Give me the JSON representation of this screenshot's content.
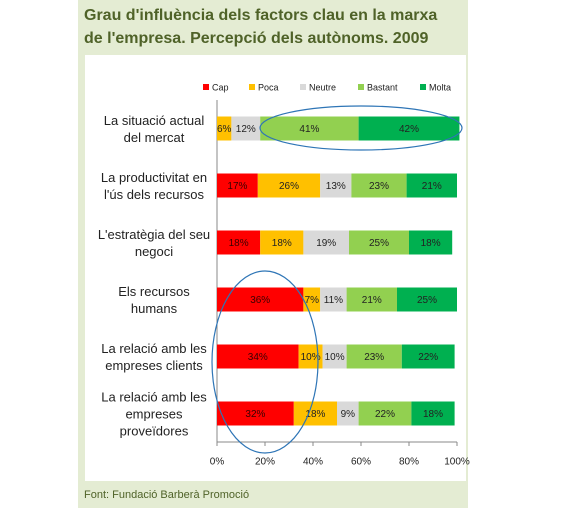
{
  "chart_data": {
    "type": "stacked-bar-horizontal",
    "title": "Grau d'influència dels factors clau en la marxa de l'empresa. Percepció dels autònoms. 2009",
    "source": "Font: Fundació Barberà Promoció",
    "categories": [
      "La situació actual del mercat",
      "La productivitat en l'ús dels recursos",
      "L'estratègia del seu negoci",
      "Els recursos humans",
      "La relació amb les empreses clients",
      "La relació amb les empreses proveïdores"
    ],
    "series": [
      {
        "name": "Cap",
        "color": "#ff0000",
        "values": [
          0,
          17,
          18,
          36,
          34,
          32
        ],
        "value_labels": [
          null,
          "17%",
          "18%",
          "36%",
          "34%",
          "32%"
        ]
      },
      {
        "name": "Poca",
        "color": "#ffc000",
        "values": [
          6,
          26,
          18,
          7,
          10,
          18
        ],
        "value_labels": [
          "6%",
          "26%",
          "18%",
          "7%",
          "10%",
          "18%"
        ]
      },
      {
        "name": "Neutre",
        "color": "#d9d9d9",
        "values": [
          12,
          13,
          19,
          11,
          10,
          9
        ],
        "value_labels": [
          "12%",
          "13%",
          "19%",
          "11%",
          "10%",
          "9%"
        ]
      },
      {
        "name": "Bastant",
        "color": "#92d050",
        "values": [
          41,
          23,
          25,
          21,
          23,
          22
        ],
        "value_labels": [
          "41%",
          "23%",
          "25%",
          "21%",
          "23%",
          "22%"
        ]
      },
      {
        "name": "Molta",
        "color": "#00b050",
        "values": [
          42,
          21,
          18,
          25,
          22,
          18
        ],
        "value_labels": [
          "42%",
          "21%",
          "18%",
          "25%",
          "22%",
          "18%"
        ]
      }
    ],
    "xlim": [
      0,
      100
    ],
    "xticks": [
      {
        "value": 0,
        "label": "0%"
      },
      {
        "value": 20,
        "label": "20%"
      },
      {
        "value": 40,
        "label": "40%"
      },
      {
        "value": 60,
        "label": "60%"
      },
      {
        "value": 80,
        "label": "80%"
      },
      {
        "value": 100,
        "label": "100%"
      }
    ],
    "legend": "top"
  }
}
